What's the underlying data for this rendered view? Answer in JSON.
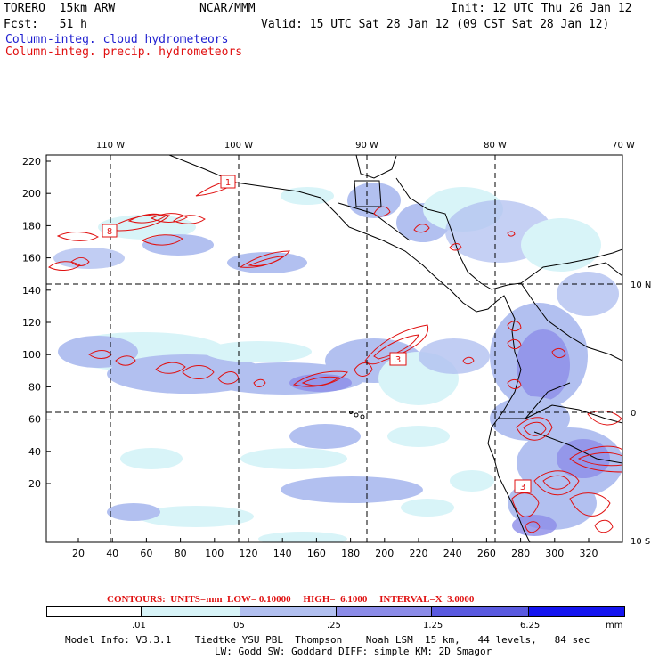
{
  "header": {
    "model": "TORERO  15km ARW",
    "org": "NCAR/MMM",
    "init": "Init: 12 UTC Thu 26 Jan 12",
    "fcst": "Fcst:   51 h",
    "valid": "Valid: 15 UTC Sat 28 Jan 12 (09 CST Sat 28 Jan 12)",
    "legend_cloud": "Column-integ. cloud hydrometeors",
    "legend_precip": "Column-integ. precip. hydrometeors",
    "cloud_color": "#1f1fd0",
    "precip_color": "#e01010"
  },
  "map": {
    "lon_labels": [
      "110 W",
      "100 W",
      "90 W",
      "80 W",
      "70 W"
    ],
    "lat_labels": [
      "10 N",
      "0",
      "10 S"
    ],
    "y_ticks": [
      "220",
      "200",
      "180",
      "160",
      "140",
      "120",
      "100",
      "80",
      "60",
      "40",
      "20"
    ],
    "x_ticks": [
      "20",
      "40",
      "60",
      "80",
      "100",
      "120",
      "140",
      "160",
      "180",
      "200",
      "220",
      "240",
      "260",
      "280",
      "300",
      "320"
    ],
    "highs": [
      "1",
      "8",
      "3",
      "3"
    ]
  },
  "contours": {
    "label": "CONTOURS:  UNITS=mm  LOW= 0.10000     HIGH=  6.1000     INTERVAL=X  3.0000"
  },
  "colorbar": {
    "levels": [
      ".01",
      ".05",
      ".25",
      "1.25",
      "6.25"
    ],
    "unit": "mm",
    "colors": [
      "#ffffff",
      "#d8f4f8",
      "#b2c0f0",
      "#8c8ce8",
      "#5a5ae0",
      "#1414f0"
    ]
  },
  "footer": {
    "line1": "Model Info: V3.3.1    Tiedtke YSU PBL  Thompson    Noah LSM  15 km,   44 levels,   84 sec",
    "line2": "LW: Godd SW: Goddard DIFF: simple KM: 2D Smagor"
  }
}
